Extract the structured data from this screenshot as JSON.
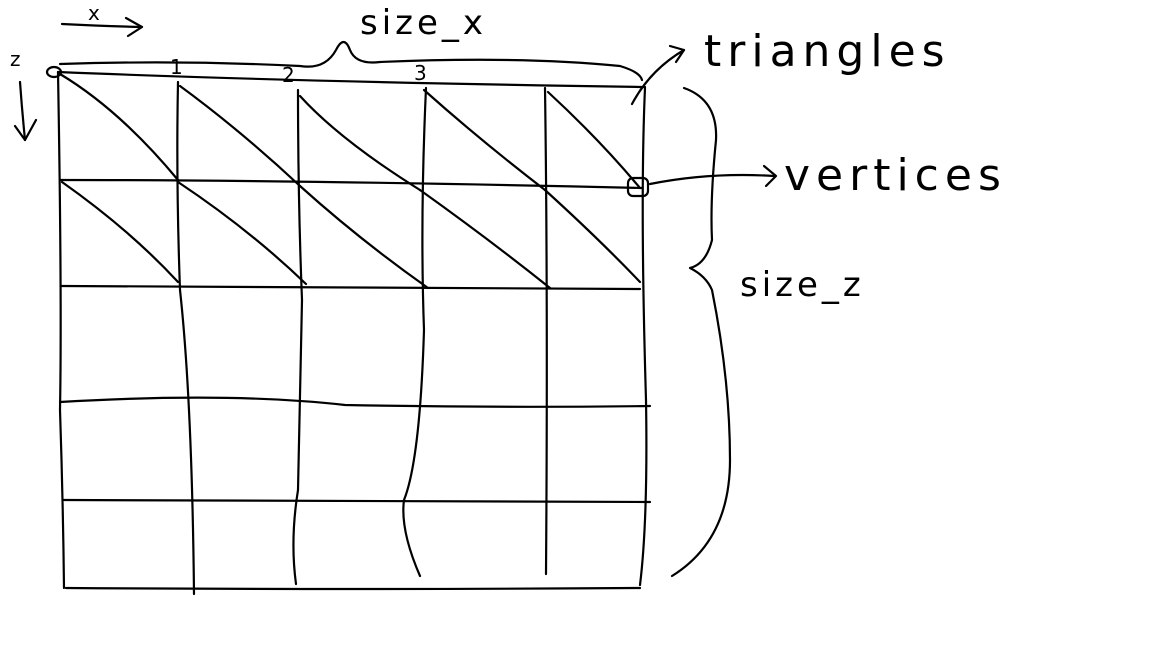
{
  "labels": {
    "axis_x": "x",
    "axis_z": "z",
    "size_x": "size_x",
    "size_z": "size_z",
    "triangles": "triangles",
    "vertices": "vertices"
  },
  "column_indices": [
    "1",
    "2",
    "3"
  ],
  "grid": {
    "columns": 5,
    "rows": 5,
    "triangulated_rows": 2
  },
  "stroke_color": "#000000"
}
